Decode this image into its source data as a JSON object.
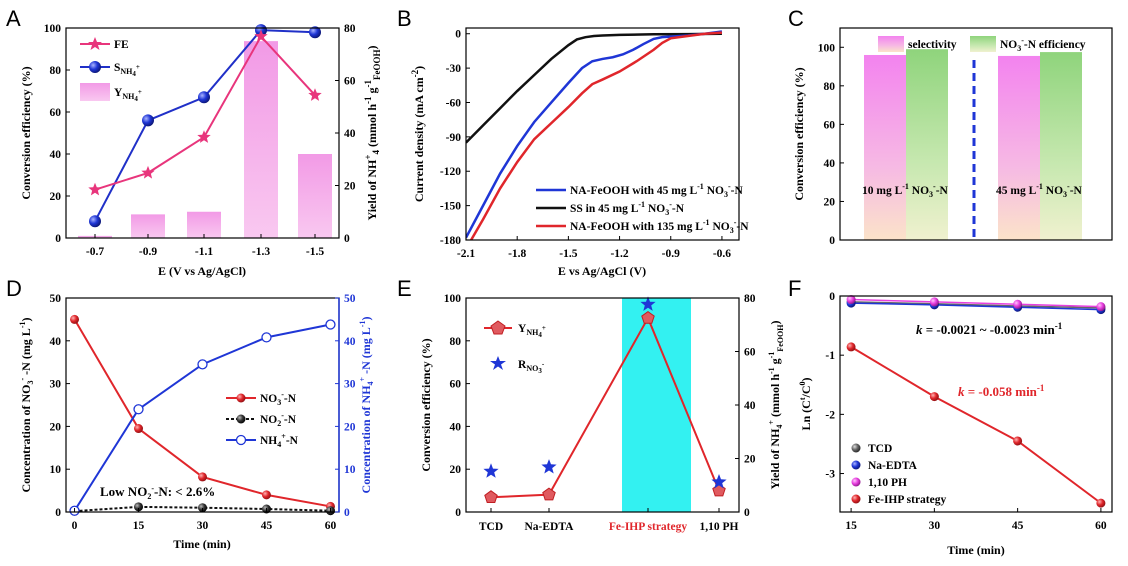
{
  "chart_data": [
    {
      "panel": "A",
      "type": "line",
      "categories": [
        "-0.7",
        "-0.9",
        "-1.1",
        "-1.3",
        "-1.5"
      ],
      "xlabel": "E (V vs Ag/AgCl)",
      "ylabel": "Conversion efficiency (%)",
      "ylabel2": "Yield of NH4+ (mmol h-1 g-1 FeOOH)",
      "ylim": [
        0,
        100
      ],
      "ylim2": [
        0,
        80
      ],
      "yticks": [
        0,
        20,
        40,
        60,
        80,
        100
      ],
      "yticks2": [
        0,
        20,
        40,
        60,
        80
      ],
      "series": [
        {
          "name": "FE",
          "marker": "star",
          "color": "#e8357c",
          "values": [
            23,
            31,
            48,
            96,
            68
          ]
        },
        {
          "name": "S NH4+",
          "marker": "circle",
          "color": "#2030c8",
          "values": [
            8,
            56,
            67,
            99,
            98
          ]
        },
        {
          "name": "Y NH4+",
          "type": "bar",
          "axis": "right",
          "color": "#f4a6e8",
          "values": [
            0.8,
            9,
            10,
            75,
            32
          ]
        }
      ],
      "legend_position": "top-left"
    },
    {
      "panel": "B",
      "type": "line",
      "xlabel": "E vs Ag/AgCl (V)",
      "ylabel": "Current density (mA cm-2)",
      "xlim": [
        -2.1,
        -0.5
      ],
      "ylim": [
        -180,
        5
      ],
      "xticks": [
        -2.1,
        -1.8,
        -1.5,
        -1.2,
        -0.9,
        -0.6
      ],
      "yticks": [
        0,
        -30,
        -60,
        -90,
        -120,
        -150,
        -180
      ],
      "series": [
        {
          "name": "NA-FeOOH with 45 mg L-1 NO3–N",
          "color": "#1f36d6",
          "x": [
            -2.1,
            -2.0,
            -1.9,
            -1.8,
            -1.7,
            -1.6,
            -1.5,
            -1.42,
            -1.36,
            -1.3,
            -1.24,
            -1.18,
            -1.12,
            -1.06,
            -1.0,
            -0.95,
            -0.9,
            -0.8,
            -0.7,
            -0.6
          ],
          "y": [
            -178,
            -150,
            -122,
            -98,
            -77,
            -60,
            -43,
            -30,
            -24,
            -22,
            -20.5,
            -18,
            -14,
            -9,
            -4.5,
            -3,
            -2.5,
            -1.5,
            0,
            2
          ]
        },
        {
          "name": "SS in 45 mg L-1 NO3–N",
          "color": "#111111",
          "x": [
            -2.1,
            -2.0,
            -1.9,
            -1.8,
            -1.7,
            -1.6,
            -1.5,
            -1.45,
            -1.4,
            -1.35,
            -1.3,
            -1.2,
            -1.0,
            -0.8,
            -0.6
          ],
          "y": [
            -95,
            -80,
            -65,
            -50,
            -36,
            -22,
            -10,
            -5,
            -3,
            -2,
            -1.5,
            -1,
            -0.5,
            -0.3,
            0
          ]
        },
        {
          "name": "NA-FeOOH with 135 mg L-1 NO3–N",
          "color": "#e0262b",
          "x": [
            -2.07,
            -2.0,
            -1.9,
            -1.8,
            -1.7,
            -1.6,
            -1.5,
            -1.42,
            -1.36,
            -1.3,
            -1.2,
            -1.1,
            -1.0,
            -0.95,
            -0.9,
            -0.8,
            -0.7,
            -0.6
          ],
          "y": [
            -180,
            -162,
            -135,
            -112,
            -92,
            -78,
            -64,
            -52,
            -44,
            -40,
            -33,
            -24,
            -14,
            -8,
            -4,
            -2,
            0,
            1
          ]
        }
      ],
      "legend_position": "bottom-right"
    },
    {
      "panel": "C",
      "type": "bar",
      "ylabel": "Conversion efficiency (%)",
      "ylim": [
        0,
        110
      ],
      "yticks": [
        0,
        20,
        40,
        60,
        80,
        100
      ],
      "groups": [
        "10 mg L-1 NO3–N",
        "45 mg L-1 NO3–N"
      ],
      "series": [
        {
          "name": "selectivity",
          "values": [
            96,
            95.5
          ]
        },
        {
          "name": "NO3–N efficiency",
          "values": [
            99,
            97.5
          ]
        }
      ],
      "legend_position": "top"
    },
    {
      "panel": "D",
      "type": "line",
      "xlabel": "Time (min)",
      "ylabel": "Concentration of NO3– -N (mg L-1)",
      "ylabel2": "Concentration of NH4+ -N (mg L-1)",
      "xlim": [
        -2,
        62
      ],
      "ylim": [
        0,
        50
      ],
      "ylim2": [
        0,
        50
      ],
      "xticks": [
        0,
        15,
        30,
        45,
        60
      ],
      "yticks": [
        0,
        10,
        20,
        30,
        40,
        50
      ],
      "x": [
        0,
        15,
        30,
        45,
        60
      ],
      "series": [
        {
          "name": "NO3–N",
          "color": "#e0262b",
          "values": [
            45,
            19.5,
            8.2,
            4.0,
            1.3
          ]
        },
        {
          "name": "NO2–N",
          "color": "#111111",
          "values": [
            0.2,
            1.2,
            1.0,
            0.7,
            0.3
          ]
        },
        {
          "name": "NH4+-N",
          "color": "#1f36d6",
          "axis": "right",
          "values": [
            0.3,
            24,
            34.5,
            40.8,
            43.8
          ]
        }
      ],
      "annotation": "Low NO2–N: < 2.6%",
      "legend_position": "center-right"
    },
    {
      "panel": "E",
      "type": "line",
      "categories": [
        "TCD",
        "Na-EDTA",
        "Fe-IHP strategy",
        "1,10 PH"
      ],
      "ylabel": "Conversion efficiency (%)",
      "ylabel2": "Yield of NH4+ (mmol h-1 g-1 FeOOH)",
      "ylim": [
        0,
        100
      ],
      "ylim2": [
        0,
        80
      ],
      "yticks": [
        0,
        20,
        40,
        60,
        80,
        100
      ],
      "yticks2": [
        0,
        20,
        40,
        60,
        80
      ],
      "series": [
        {
          "name": "Y NH4+",
          "color": "#e0262b",
          "marker": "pentagon",
          "axis": "right",
          "values": [
            5.5,
            6.5,
            72.5,
            8
          ]
        },
        {
          "name": "R NO3–",
          "color": "#1f36d6",
          "marker": "star",
          "values": [
            19,
            21,
            97,
            14
          ]
        }
      ],
      "highlight_category": "Fe-IHP strategy",
      "legend_position": "top-left"
    },
    {
      "panel": "F",
      "type": "scatter",
      "xlabel": "Time (min)",
      "ylabel": "Ln (Ct/C0)",
      "xlim": [
        13,
        62
      ],
      "ylim": [
        -3.65,
        0
      ],
      "xticks": [
        15,
        30,
        45,
        60
      ],
      "yticks": [
        0,
        -1,
        -2,
        -3
      ],
      "x": [
        15,
        30,
        45,
        60
      ],
      "series": [
        {
          "name": "TCD",
          "color": "#666666",
          "values": [
            -0.1,
            -0.13,
            -0.17,
            -0.2
          ]
        },
        {
          "name": "Na-EDTA",
          "color": "#1f36d6",
          "values": [
            -0.12,
            -0.15,
            -0.19,
            -0.23
          ]
        },
        {
          "name": "1,10 PH",
          "color": "#e83fe0",
          "values": [
            -0.06,
            -0.1,
            -0.14,
            -0.18
          ]
        },
        {
          "name": "Fe-IHP strategy",
          "color": "#e0262b",
          "values": [
            -0.86,
            -1.7,
            -2.45,
            -3.5
          ]
        }
      ],
      "annotations": [
        "k = -0.0021 ~ -0.0023 min-1",
        "k = -0.058 min-1"
      ],
      "legend_position": "bottom-left"
    }
  ],
  "panel_labels": [
    "A",
    "B",
    "C",
    "D",
    "E",
    "F"
  ],
  "text": {
    "a_legend_fe": "FE",
    "a_legend_s": "S",
    "a_legend_s_sub": "NH4+",
    "a_legend_y": "Y",
    "a_legend_y_sub": "NH4+",
    "b_leg1": "NA-FeOOH with 45 mg L",
    "b_leg2": "SS in 45 mg L",
    "b_leg3": "NA-FeOOH with 135 mg L",
    "c_leg_sel": "selectivity",
    "c_leg_eff": "NO",
    "c_leg_eff_tail": "-N efficiency",
    "c_group1": "10 mg L",
    "c_group2": "45 mg L",
    "d_leg1": "NO",
    "d_leg1_tail": "-N",
    "d_leg2": "NO",
    "d_leg2_tail": "-N",
    "d_leg3": "NH",
    "d_leg3_tail": "-N",
    "d_ann": "Low NO",
    "d_ann_tail": "-N: < 2.6%",
    "e_leg1": "Y",
    "e_leg1_sub": "NH4+",
    "e_leg2": "R",
    "e_leg2_sub": "NO3–",
    "f_k1": "k",
    "f_k1_tail": " = -0.0021 ~ -0.0023 min",
    "f_k2": "k",
    "f_k2_tail": " = -0.058 min",
    "f_leg1": "TCD",
    "f_leg2": "Na-EDTA",
    "f_leg3": "1,10 PH",
    "f_leg4": "Fe-IHP strategy"
  }
}
